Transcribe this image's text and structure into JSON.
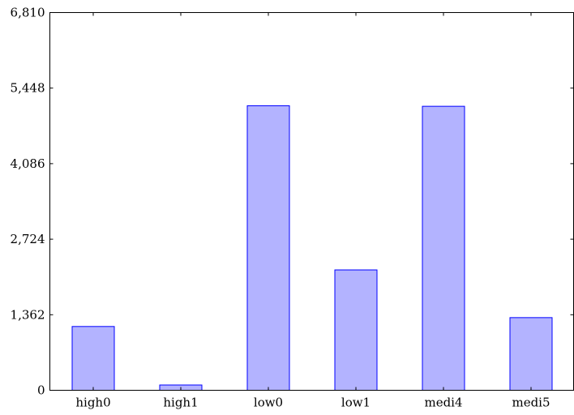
{
  "chart_data": {
    "type": "bar",
    "title": "",
    "xlabel": "",
    "ylabel": "",
    "categories": [
      "high0",
      "high1",
      "low0",
      "low1",
      "medi4",
      "medi5"
    ],
    "values": [
      1150,
      95,
      5130,
      2170,
      5120,
      1310
    ],
    "ylim": [
      0,
      6810
    ],
    "yticks": [
      0,
      1362,
      2724,
      4086,
      5448,
      6810
    ],
    "ytick_labels": [
      "0",
      "1,362",
      "2,724",
      "4,086",
      "5,448",
      "6,810"
    ],
    "grid": false,
    "colors": {
      "bar_fill": "#b3b3ff",
      "bar_stroke": "#0000ff"
    }
  }
}
